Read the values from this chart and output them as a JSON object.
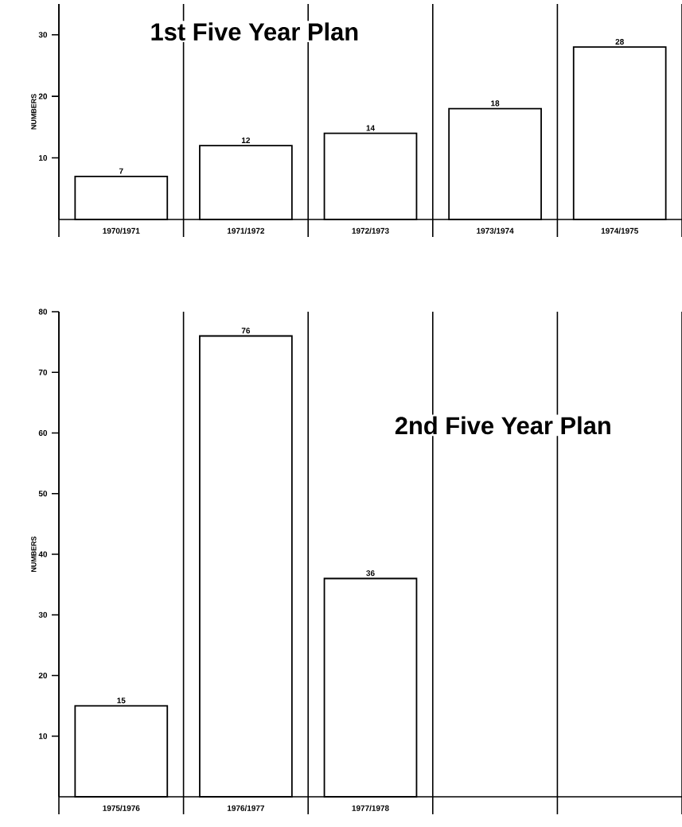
{
  "chart_data": [
    {
      "type": "bar",
      "title": "1st Five Year Plan",
      "ylabel": "NUMBERS",
      "categories": [
        "1970/1971",
        "1971/1972",
        "1972/1973",
        "1973/1974",
        "1974/1975"
      ],
      "values": [
        7,
        12,
        14,
        18,
        28
      ],
      "color": "#ffffff",
      "ylim": [
        0,
        35
      ],
      "yticks": [
        10,
        20,
        30
      ],
      "grid": "x",
      "data_labels": true
    },
    {
      "type": "bar",
      "title": "2nd Five Year Plan",
      "ylabel": "NUMBERS",
      "categories": [
        "1975/1976",
        "1976/1977",
        "1977/1978",
        null,
        null
      ],
      "values": [
        15,
        76,
        36,
        null,
        null
      ],
      "color": "#ffffff",
      "ylim": [
        0,
        80
      ],
      "yticks": [
        10,
        20,
        30,
        40,
        50,
        60,
        70,
        80
      ],
      "grid": "x",
      "data_labels": true
    }
  ]
}
